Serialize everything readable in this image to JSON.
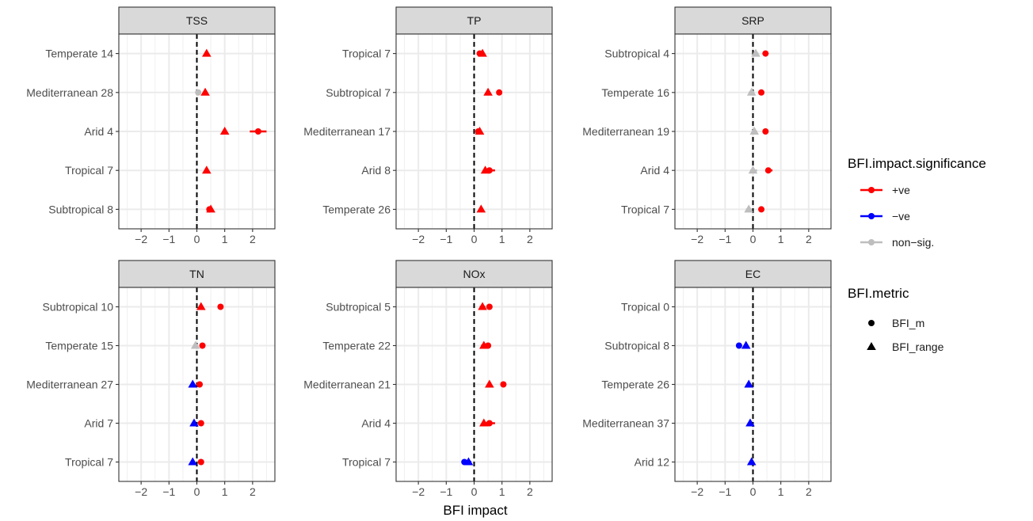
{
  "chart_data": {
    "type": "scatter",
    "xlabel": "BFI impact",
    "ylabel": "",
    "xlim": [
      -2.8,
      2.8
    ],
    "xticks": [
      -2,
      -1,
      0,
      1,
      2
    ],
    "tick_labels": [
      "−2",
      "−1",
      "0",
      "1",
      "2"
    ],
    "grid": true,
    "reference_line": 0,
    "colors": {
      "+ve": "#ff0000",
      "−ve": "#0000ff",
      "non−sig.": "#bebebe"
    },
    "legend": {
      "placement": "right",
      "significance_title": "BFI.impact.significance",
      "significance_items": [
        {
          "label": "+ve",
          "key": "+ve"
        },
        {
          "label": "−ve",
          "key": "−ve"
        },
        {
          "label": "non−sig.",
          "key": "non−sig."
        }
      ],
      "metric_title": "BFI.metric",
      "metric_items": [
        {
          "label": "BFI_m",
          "shape": "circle"
        },
        {
          "label": "BFI_range",
          "shape": "triangle"
        }
      ]
    },
    "panels": [
      {
        "title": "TSS",
        "categories": [
          "Temperate 14",
          "Mediterranean 28",
          "Arid 4",
          "Tropical 7",
          "Subtropical 8"
        ],
        "points": [
          {
            "cat": 0,
            "metric": "BFI_range",
            "x": 0.35,
            "lo": 0.3,
            "hi": 0.4,
            "sig": "+ve"
          },
          {
            "cat": 1,
            "metric": "BFI_m",
            "x": 0.05,
            "lo": 0.0,
            "hi": 0.1,
            "sig": "non−sig."
          },
          {
            "cat": 1,
            "metric": "BFI_range",
            "x": 0.3,
            "lo": 0.25,
            "hi": 0.35,
            "sig": "+ve"
          },
          {
            "cat": 2,
            "metric": "BFI_range",
            "x": 1.0,
            "lo": 0.95,
            "hi": 1.05,
            "sig": "+ve"
          },
          {
            "cat": 2,
            "metric": "BFI_m",
            "x": 2.2,
            "lo": 1.9,
            "hi": 2.5,
            "sig": "+ve"
          },
          {
            "cat": 3,
            "metric": "BFI_range",
            "x": 0.35,
            "lo": 0.3,
            "hi": 0.4,
            "sig": "+ve"
          },
          {
            "cat": 4,
            "metric": "BFI_m",
            "x": 0.45,
            "lo": 0.4,
            "hi": 0.5,
            "sig": "+ve"
          },
          {
            "cat": 4,
            "metric": "BFI_range",
            "x": 0.5,
            "lo": 0.45,
            "hi": 0.55,
            "sig": "+ve"
          }
        ]
      },
      {
        "title": "TP",
        "categories": [
          "Tropical 7",
          "Subtropical 7",
          "Mediterranean 17",
          "Arid 8",
          "Temperate 26"
        ],
        "points": [
          {
            "cat": 0,
            "metric": "BFI_m",
            "x": 0.2,
            "lo": 0.15,
            "hi": 0.25,
            "sig": "+ve"
          },
          {
            "cat": 0,
            "metric": "BFI_range",
            "x": 0.3,
            "lo": 0.25,
            "hi": 0.35,
            "sig": "+ve"
          },
          {
            "cat": 1,
            "metric": "BFI_range",
            "x": 0.5,
            "lo": 0.45,
            "hi": 0.55,
            "sig": "+ve"
          },
          {
            "cat": 1,
            "metric": "BFI_m",
            "x": 0.9,
            "lo": 0.8,
            "hi": 1.0,
            "sig": "+ve"
          },
          {
            "cat": 2,
            "metric": "BFI_m",
            "x": 0.15,
            "lo": 0.1,
            "hi": 0.2,
            "sig": "+ve"
          },
          {
            "cat": 2,
            "metric": "BFI_range",
            "x": 0.2,
            "lo": 0.15,
            "hi": 0.25,
            "sig": "+ve"
          },
          {
            "cat": 3,
            "metric": "BFI_range",
            "x": 0.4,
            "lo": 0.35,
            "hi": 0.45,
            "sig": "+ve"
          },
          {
            "cat": 3,
            "metric": "BFI_m",
            "x": 0.55,
            "lo": 0.4,
            "hi": 0.75,
            "sig": "+ve"
          },
          {
            "cat": 4,
            "metric": "BFI_range",
            "x": 0.25,
            "lo": 0.2,
            "hi": 0.3,
            "sig": "+ve"
          }
        ]
      },
      {
        "title": "SRP",
        "categories": [
          "Subtropical 4",
          "Temperate 16",
          "Mediterranean 19",
          "Arid 4",
          "Tropical 7"
        ],
        "points": [
          {
            "cat": 0,
            "metric": "BFI_range",
            "x": 0.1,
            "lo": 0.0,
            "hi": 0.2,
            "sig": "non−sig."
          },
          {
            "cat": 0,
            "metric": "BFI_m",
            "x": 0.45,
            "lo": 0.35,
            "hi": 0.55,
            "sig": "+ve"
          },
          {
            "cat": 1,
            "metric": "BFI_range",
            "x": -0.05,
            "lo": -0.15,
            "hi": 0.05,
            "sig": "non−sig."
          },
          {
            "cat": 1,
            "metric": "BFI_m",
            "x": 0.3,
            "lo": 0.25,
            "hi": 0.35,
            "sig": "+ve"
          },
          {
            "cat": 2,
            "metric": "BFI_range",
            "x": 0.05,
            "lo": 0.0,
            "hi": 0.15,
            "sig": "non−sig."
          },
          {
            "cat": 2,
            "metric": "BFI_m",
            "x": 0.45,
            "lo": 0.4,
            "hi": 0.5,
            "sig": "+ve"
          },
          {
            "cat": 3,
            "metric": "BFI_range",
            "x": 0.0,
            "lo": -0.1,
            "hi": 0.15,
            "sig": "non−sig."
          },
          {
            "cat": 3,
            "metric": "BFI_m",
            "x": 0.55,
            "lo": 0.45,
            "hi": 0.7,
            "sig": "+ve"
          },
          {
            "cat": 4,
            "metric": "BFI_range",
            "x": -0.15,
            "lo": -0.25,
            "hi": -0.05,
            "sig": "non−sig."
          },
          {
            "cat": 4,
            "metric": "BFI_m",
            "x": 0.3,
            "lo": 0.2,
            "hi": 0.4,
            "sig": "+ve"
          }
        ]
      },
      {
        "title": "TN",
        "categories": [
          "Subtropical 10",
          "Temperate 15",
          "Mediterranean 27",
          "Arid 7",
          "Tropical 7"
        ],
        "points": [
          {
            "cat": 0,
            "metric": "BFI_range",
            "x": 0.15,
            "lo": 0.1,
            "hi": 0.2,
            "sig": "+ve"
          },
          {
            "cat": 0,
            "metric": "BFI_m",
            "x": 0.85,
            "lo": 0.8,
            "hi": 0.9,
            "sig": "+ve"
          },
          {
            "cat": 1,
            "metric": "BFI_range",
            "x": -0.05,
            "lo": -0.1,
            "hi": 0.0,
            "sig": "non−sig."
          },
          {
            "cat": 1,
            "metric": "BFI_m",
            "x": 0.2,
            "lo": 0.15,
            "hi": 0.25,
            "sig": "+ve"
          },
          {
            "cat": 2,
            "metric": "BFI_range",
            "x": -0.15,
            "lo": -0.2,
            "hi": -0.1,
            "sig": "−ve"
          },
          {
            "cat": 2,
            "metric": "BFI_m",
            "x": 0.1,
            "lo": 0.05,
            "hi": 0.15,
            "sig": "+ve"
          },
          {
            "cat": 3,
            "metric": "BFI_range",
            "x": -0.1,
            "lo": -0.15,
            "hi": -0.05,
            "sig": "−ve"
          },
          {
            "cat": 3,
            "metric": "BFI_m",
            "x": 0.15,
            "lo": 0.1,
            "hi": 0.2,
            "sig": "+ve"
          },
          {
            "cat": 4,
            "metric": "BFI_range",
            "x": -0.15,
            "lo": -0.2,
            "hi": -0.1,
            "sig": "−ve"
          },
          {
            "cat": 4,
            "metric": "BFI_m",
            "x": 0.15,
            "lo": 0.1,
            "hi": 0.2,
            "sig": "+ve"
          }
        ]
      },
      {
        "title": "NOx",
        "categories": [
          "Subtropical 5",
          "Temperate 22",
          "Mediterranean 21",
          "Arid 4",
          "Tropical 7"
        ],
        "points": [
          {
            "cat": 0,
            "metric": "BFI_range",
            "x": 0.3,
            "lo": 0.2,
            "hi": 0.4,
            "sig": "+ve"
          },
          {
            "cat": 0,
            "metric": "BFI_m",
            "x": 0.55,
            "lo": 0.45,
            "hi": 0.65,
            "sig": "+ve"
          },
          {
            "cat": 1,
            "metric": "BFI_range",
            "x": 0.35,
            "lo": 0.25,
            "hi": 0.45,
            "sig": "+ve"
          },
          {
            "cat": 1,
            "metric": "BFI_m",
            "x": 0.5,
            "lo": 0.4,
            "hi": 0.6,
            "sig": "+ve"
          },
          {
            "cat": 2,
            "metric": "BFI_range",
            "x": 0.55,
            "lo": 0.5,
            "hi": 0.6,
            "sig": "+ve"
          },
          {
            "cat": 2,
            "metric": "BFI_m",
            "x": 1.05,
            "lo": 0.95,
            "hi": 1.15,
            "sig": "+ve"
          },
          {
            "cat": 3,
            "metric": "BFI_range",
            "x": 0.35,
            "lo": 0.3,
            "hi": 0.45,
            "sig": "+ve"
          },
          {
            "cat": 3,
            "metric": "BFI_m",
            "x": 0.55,
            "lo": 0.4,
            "hi": 0.75,
            "sig": "+ve"
          },
          {
            "cat": 4,
            "metric": "BFI_m",
            "x": -0.35,
            "lo": -0.45,
            "hi": -0.25,
            "sig": "−ve"
          },
          {
            "cat": 4,
            "metric": "BFI_range",
            "x": -0.2,
            "lo": -0.3,
            "hi": -0.1,
            "sig": "−ve"
          }
        ]
      },
      {
        "title": "EC",
        "categories": [
          "Tropical 0",
          "Subtropical 8",
          "Temperate 26",
          "Mediterranean 37",
          "Arid 12"
        ],
        "points": [
          {
            "cat": 1,
            "metric": "BFI_m",
            "x": -0.5,
            "lo": -0.55,
            "hi": -0.45,
            "sig": "−ve"
          },
          {
            "cat": 1,
            "metric": "BFI_range",
            "x": -0.25,
            "lo": -0.3,
            "hi": -0.2,
            "sig": "−ve"
          },
          {
            "cat": 2,
            "metric": "BFI_range",
            "x": -0.15,
            "lo": -0.2,
            "hi": -0.1,
            "sig": "−ve"
          },
          {
            "cat": 3,
            "metric": "BFI_range",
            "x": -0.1,
            "lo": -0.15,
            "hi": -0.05,
            "sig": "−ve"
          },
          {
            "cat": 4,
            "metric": "BFI_range",
            "x": -0.05,
            "lo": -0.1,
            "hi": 0.0,
            "sig": "−ve"
          }
        ]
      }
    ]
  }
}
